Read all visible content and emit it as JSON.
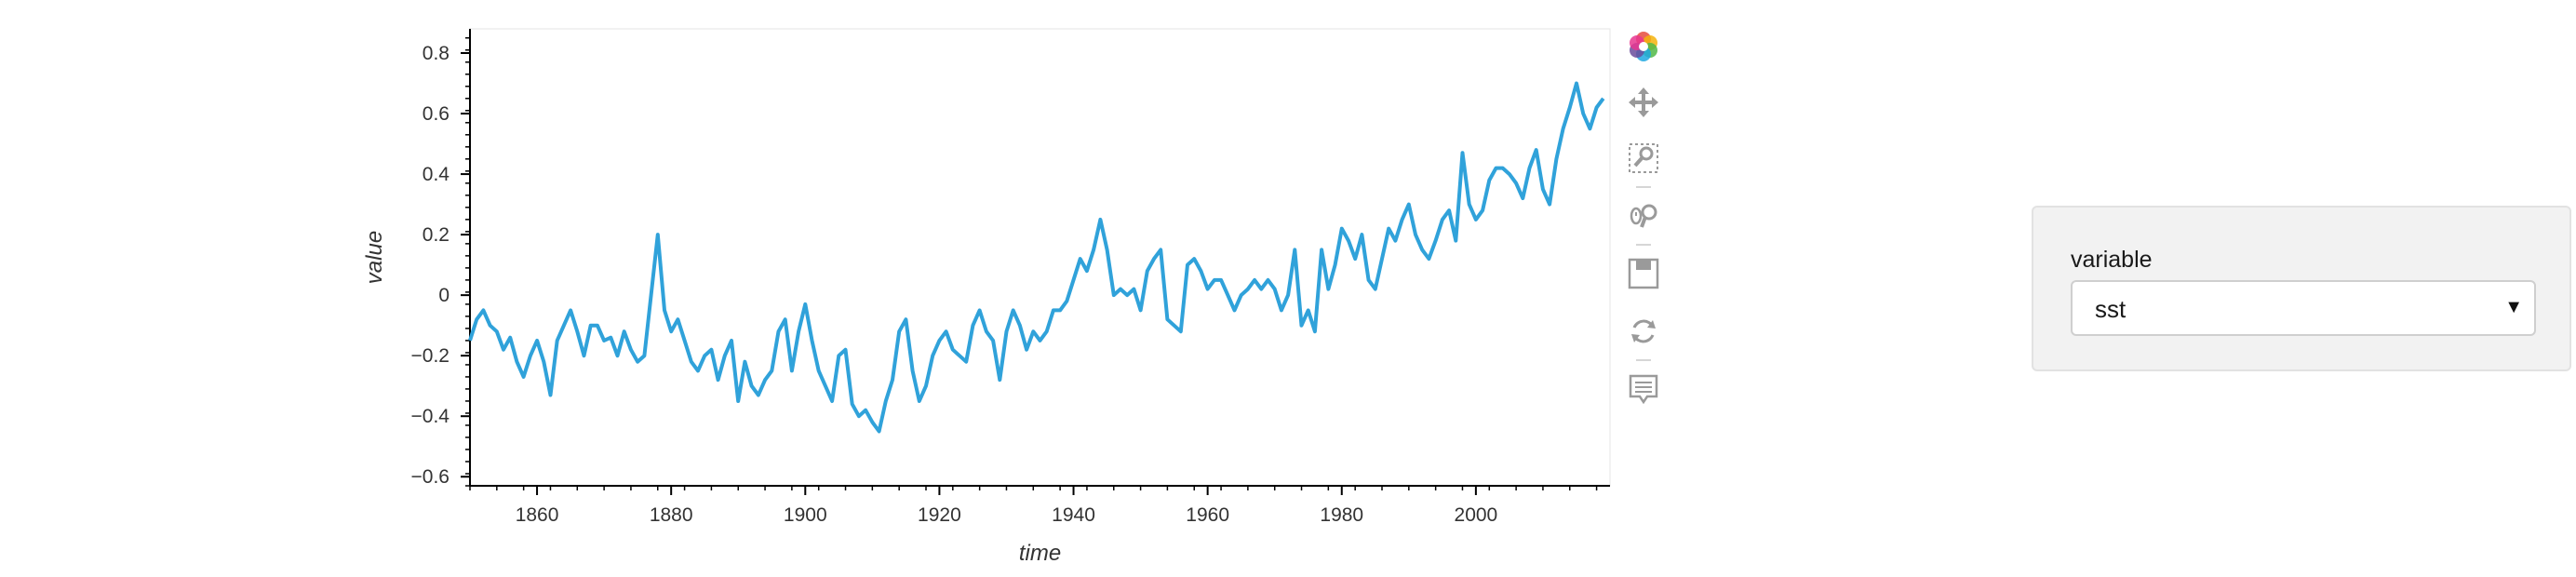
{
  "chart_data": {
    "type": "line",
    "title": "",
    "xlabel": "time",
    "ylabel": "value",
    "xlim": [
      1850,
      2020
    ],
    "ylim": [
      -0.63,
      0.88
    ],
    "x_ticks": [
      1860,
      1880,
      1900,
      1920,
      1940,
      1960,
      1980,
      2000
    ],
    "y_ticks": [
      -0.6,
      -0.4,
      -0.2,
      0,
      0.2,
      0.4,
      0.6,
      0.8
    ],
    "y_tick_labels": [
      "−0.6",
      "−0.4",
      "−0.2",
      "0",
      "0.2",
      "0.4",
      "0.6",
      "0.8"
    ],
    "grid": false,
    "series": [
      {
        "color": "#30a2da",
        "x": [
          1850,
          1851,
          1852,
          1853,
          1854,
          1855,
          1856,
          1857,
          1858,
          1859,
          1860,
          1861,
          1862,
          1863,
          1864,
          1865,
          1866,
          1867,
          1868,
          1869,
          1870,
          1871,
          1872,
          1873,
          1874,
          1875,
          1876,
          1877,
          1878,
          1879,
          1880,
          1881,
          1882,
          1883,
          1884,
          1885,
          1886,
          1887,
          1888,
          1889,
          1890,
          1891,
          1892,
          1893,
          1894,
          1895,
          1896,
          1897,
          1898,
          1899,
          1900,
          1901,
          1902,
          1903,
          1904,
          1905,
          1906,
          1907,
          1908,
          1909,
          1910,
          1911,
          1912,
          1913,
          1914,
          1915,
          1916,
          1917,
          1918,
          1919,
          1920,
          1921,
          1922,
          1923,
          1924,
          1925,
          1926,
          1927,
          1928,
          1929,
          1930,
          1931,
          1932,
          1933,
          1934,
          1935,
          1936,
          1937,
          1938,
          1939,
          1940,
          1941,
          1942,
          1943,
          1944,
          1945,
          1946,
          1947,
          1948,
          1949,
          1950,
          1951,
          1952,
          1953,
          1954,
          1955,
          1956,
          1957,
          1958,
          1959,
          1960,
          1961,
          1962,
          1963,
          1964,
          1965,
          1966,
          1967,
          1968,
          1969,
          1970,
          1971,
          1972,
          1973,
          1974,
          1975,
          1976,
          1977,
          1978,
          1979,
          1980,
          1981,
          1982,
          1983,
          1984,
          1985,
          1986,
          1987,
          1988,
          1989,
          1990,
          1991,
          1992,
          1993,
          1994,
          1995,
          1996,
          1997,
          1998,
          1999,
          2000,
          2001,
          2002,
          2003,
          2004,
          2005,
          2006,
          2007,
          2008,
          2009,
          2010,
          2011,
          2012,
          2013,
          2014,
          2015,
          2016,
          2017,
          2018,
          2019
        ],
        "values": [
          -0.15,
          -0.08,
          -0.05,
          -0.1,
          -0.12,
          -0.18,
          -0.14,
          -0.22,
          -0.27,
          -0.2,
          -0.15,
          -0.22,
          -0.33,
          -0.15,
          -0.1,
          -0.05,
          -0.12,
          -0.2,
          -0.1,
          -0.1,
          -0.15,
          -0.14,
          -0.2,
          -0.12,
          -0.18,
          -0.22,
          -0.2,
          0.0,
          0.2,
          -0.05,
          -0.12,
          -0.08,
          -0.15,
          -0.22,
          -0.25,
          -0.2,
          -0.18,
          -0.28,
          -0.2,
          -0.15,
          -0.35,
          -0.22,
          -0.3,
          -0.33,
          -0.28,
          -0.25,
          -0.12,
          -0.08,
          -0.25,
          -0.12,
          -0.03,
          -0.15,
          -0.25,
          -0.3,
          -0.35,
          -0.2,
          -0.18,
          -0.36,
          -0.4,
          -0.38,
          -0.42,
          -0.45,
          -0.35,
          -0.28,
          -0.12,
          -0.08,
          -0.25,
          -0.35,
          -0.3,
          -0.2,
          -0.15,
          -0.12,
          -0.18,
          -0.2,
          -0.22,
          -0.1,
          -0.05,
          -0.12,
          -0.15,
          -0.28,
          -0.12,
          -0.05,
          -0.1,
          -0.18,
          -0.12,
          -0.15,
          -0.12,
          -0.05,
          -0.05,
          -0.02,
          0.05,
          0.12,
          0.08,
          0.15,
          0.25,
          0.15,
          0.0,
          0.02,
          0.0,
          0.02,
          -0.05,
          0.08,
          0.12,
          0.15,
          -0.08,
          -0.1,
          -0.12,
          0.1,
          0.12,
          0.08,
          0.02,
          0.05,
          0.05,
          0.0,
          -0.05,
          0.0,
          0.02,
          0.05,
          0.02,
          0.05,
          0.02,
          -0.05,
          0.0,
          0.15,
          -0.1,
          -0.05,
          -0.12,
          0.15,
          0.02,
          0.1,
          0.22,
          0.18,
          0.12,
          0.2,
          0.05,
          0.02,
          0.12,
          0.22,
          0.18,
          0.25,
          0.3,
          0.2,
          0.15,
          0.12,
          0.18,
          0.25,
          0.28,
          0.18,
          0.47,
          0.3,
          0.25,
          0.28,
          0.38,
          0.42,
          0.42,
          0.4,
          0.37,
          0.32,
          0.42,
          0.48,
          0.35,
          0.3,
          0.45,
          0.55,
          0.62,
          0.7,
          0.6,
          0.55,
          0.62,
          0.65
        ]
      }
    ]
  },
  "toolbar": {
    "items": [
      {
        "icon": "bokeh-logo-icon"
      },
      {
        "icon": "pan-icon"
      },
      {
        "icon": "box-zoom-icon"
      },
      {
        "icon": "wheel-zoom-icon"
      },
      {
        "icon": "save-icon"
      },
      {
        "icon": "reset-icon"
      },
      {
        "icon": "hover-icon"
      }
    ]
  },
  "widget": {
    "label": "variable",
    "selected": "sst"
  }
}
